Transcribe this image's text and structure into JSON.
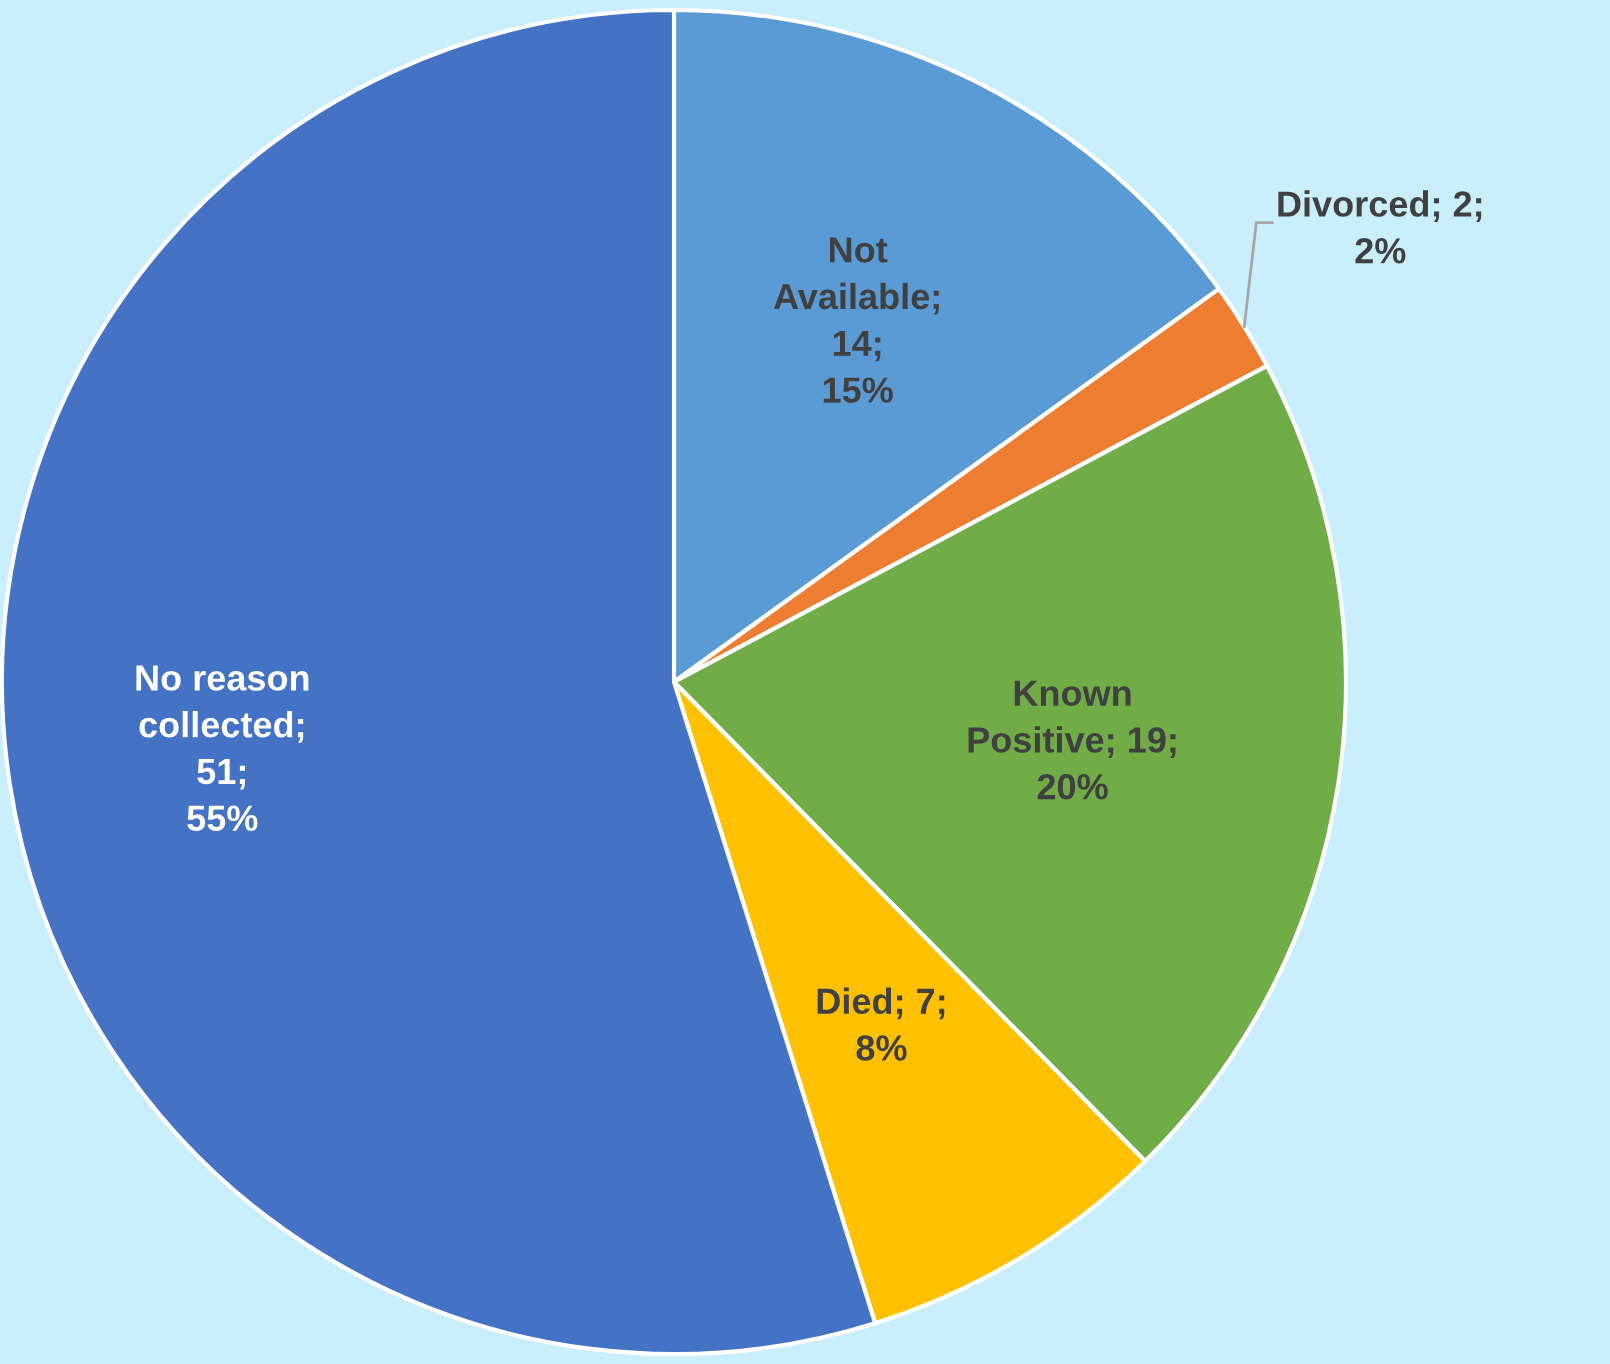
{
  "chart_data": {
    "type": "pie",
    "categories": [
      "Not Available",
      "Divorced",
      "Known Positive",
      "Died",
      "No reason collected"
    ],
    "values": [
      14,
      2,
      19,
      7,
      51
    ],
    "colors": [
      "#5b9bd5",
      "#ed7d31",
      "#70ad47",
      "#ffc000",
      "#4472c4"
    ],
    "value_labels": [
      "; 14;\n15%",
      "; 2;\n2%",
      "; 19;\n20%",
      "; 7;\n8%",
      "; 51;\n55%"
    ],
    "legend": false
  }
}
